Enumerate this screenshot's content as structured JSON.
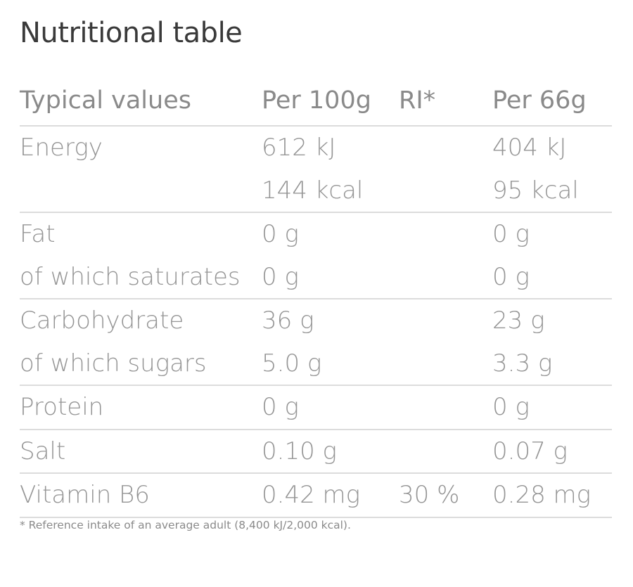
{
  "title": "Nutritional table",
  "header": [
    "Typical values",
    "Per 100g",
    "RI*",
    "Per 66g"
  ],
  "groups": [
    {
      "lines": [
        [
          "Energy",
          "612 kJ",
          "",
          "404 kJ"
        ],
        [
          "",
          "144 kcal",
          "",
          "95 kcal"
        ]
      ]
    },
    {
      "lines": [
        [
          "Fat",
          "0 g",
          "",
          "0 g"
        ],
        [
          "of which saturates",
          "0 g",
          "",
          "0 g"
        ]
      ]
    },
    {
      "lines": [
        [
          "Carbohydrate",
          "36 g",
          "",
          "23 g"
        ],
        [
          "of which sugars",
          "5.0 g",
          "",
          "3.3 g"
        ]
      ]
    },
    {
      "lines": [
        [
          "Protein",
          "0 g",
          "",
          "0 g"
        ]
      ]
    },
    {
      "lines": [
        [
          "Salt",
          "0.10 g",
          "",
          "0.07 g"
        ]
      ]
    },
    {
      "lines": [
        [
          "Vitamin B6",
          "0.42 mg",
          "30 %",
          "0.28 mg"
        ]
      ]
    }
  ],
  "footnote": "* Reference intake of an average adult (8,400 kJ/2,000 kcal)."
}
